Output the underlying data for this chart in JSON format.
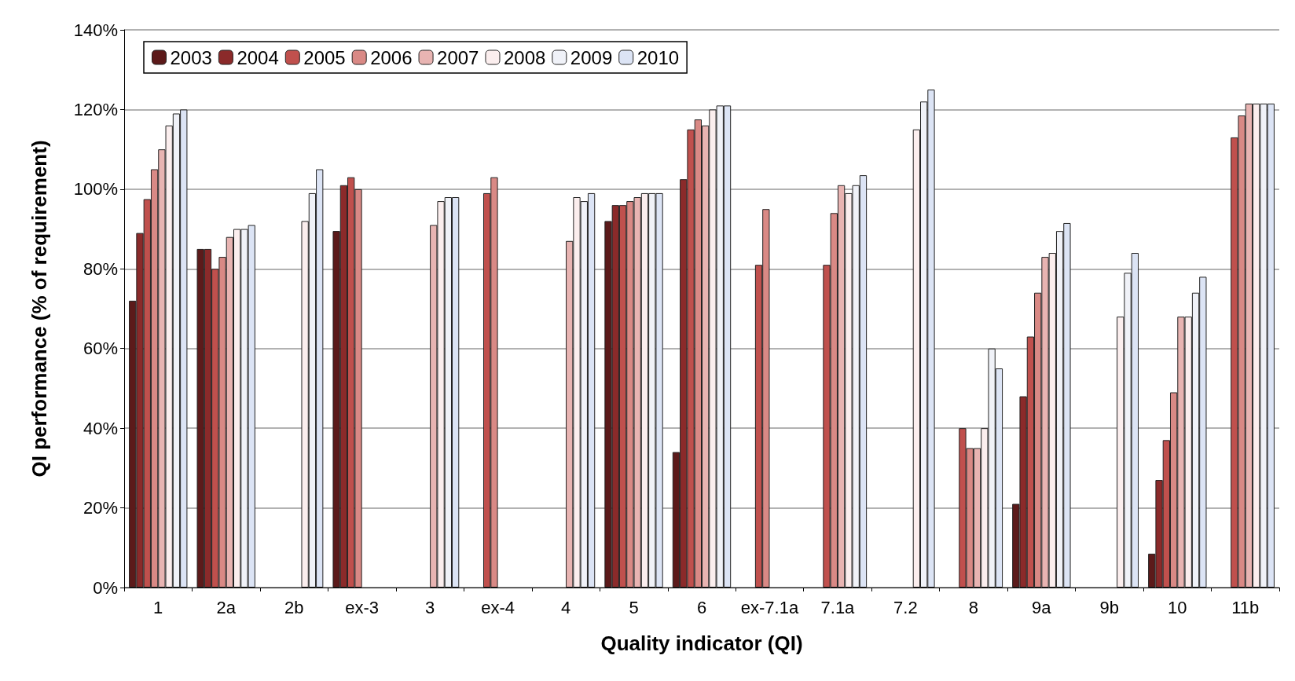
{
  "chart_data": {
    "type": "bar",
    "xlabel": "Quality indicator (QI)",
    "ylabel": "QI performance (% of requirement)",
    "categories": [
      "1",
      "2a",
      "2b",
      "ex-3",
      "3",
      "ex-4",
      "4",
      "5",
      "6",
      "ex-7.1a",
      "7.1a",
      "7.2",
      "8",
      "9a",
      "9b",
      "10",
      "11b"
    ],
    "series": [
      {
        "name": "2003",
        "color": "#5c1a1a",
        "values": [
          72,
          85,
          null,
          89.5,
          null,
          null,
          null,
          92,
          34,
          null,
          null,
          null,
          null,
          21,
          null,
          8.5,
          null
        ]
      },
      {
        "name": "2004",
        "color": "#8b2a2a",
        "values": [
          89,
          85,
          null,
          101,
          null,
          null,
          null,
          96,
          102.5,
          null,
          null,
          null,
          null,
          48,
          null,
          27,
          null
        ]
      },
      {
        "name": "2005",
        "color": "#c0504d",
        "values": [
          97.5,
          80,
          null,
          103,
          null,
          99,
          null,
          96,
          115,
          81,
          81,
          null,
          40,
          63,
          null,
          37,
          113
        ]
      },
      {
        "name": "2006",
        "color": "#d98985",
        "values": [
          105,
          83,
          null,
          100,
          null,
          103,
          null,
          97,
          117.5,
          95,
          94,
          null,
          35,
          74,
          null,
          49,
          118.5
        ]
      },
      {
        "name": "2007",
        "color": "#e8b4b2",
        "values": [
          110,
          88,
          null,
          null,
          91,
          null,
          87,
          98,
          116,
          null,
          101,
          null,
          35,
          83,
          null,
          68,
          121.5
        ]
      },
      {
        "name": "2008",
        "color": "#fbeeee",
        "values": [
          116,
          90,
          92,
          null,
          97,
          null,
          98,
          99,
          120,
          null,
          99,
          115,
          40,
          84,
          68,
          68,
          121.5
        ]
      },
      {
        "name": "2009",
        "color": "#f0f2f8",
        "values": [
          119,
          90,
          99,
          null,
          98,
          null,
          97,
          99,
          121,
          null,
          101,
          122,
          60,
          89.5,
          79,
          74,
          121.5
        ]
      },
      {
        "name": "2010",
        "color": "#dce4f5",
        "values": [
          120,
          91,
          105,
          null,
          98,
          null,
          99,
          99,
          121,
          null,
          103.5,
          125,
          55,
          91.5,
          84,
          78,
          121.5
        ]
      }
    ],
    "ylim": [
      0,
      140
    ],
    "yticks": [
      {
        "value": 0,
        "label": "0%"
      },
      {
        "value": 20,
        "label": "20%"
      },
      {
        "value": 40,
        "label": "40%"
      },
      {
        "value": 60,
        "label": "60%"
      },
      {
        "value": 80,
        "label": "80%"
      },
      {
        "value": 100,
        "label": "100%"
      },
      {
        "value": 120,
        "label": "120%"
      },
      {
        "value": 140,
        "label": "140%"
      }
    ],
    "grid": "y",
    "legend": "top left"
  }
}
